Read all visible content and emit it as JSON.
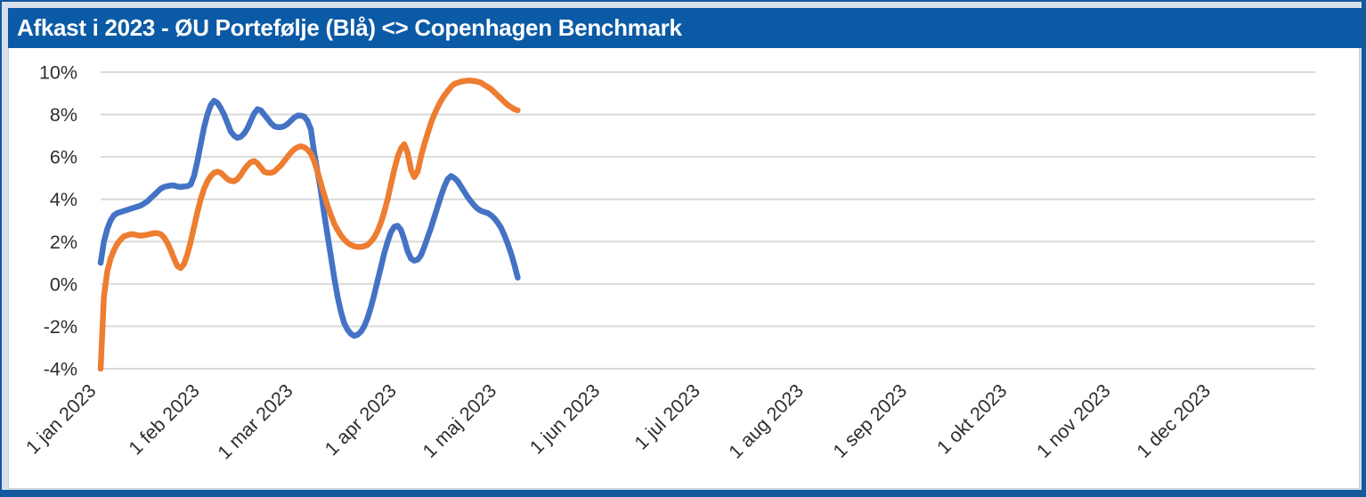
{
  "window": {
    "title": "Afkast i 2023 - ØU Portefølje (Blå) <> Copenhagen Benchmark",
    "colors": {
      "titlebar_bg": "#0b5aa5",
      "titlebar_text": "#ffffff",
      "frame_border": "#14589d",
      "frame_light": "#d6e1ec",
      "gridline": "#d9d9d9",
      "axis_text": "#2e2e2e",
      "plot_bg": "#ffffff"
    }
  },
  "chart_data": {
    "type": "line",
    "title": "Afkast i 2023 - ØU Portefølje (Blå) <> Copenhagen Benchmark",
    "grid": true,
    "legend_position": "none",
    "y_axis": {
      "unit": "%",
      "ylim": [
        -4,
        10
      ],
      "tick_values": [
        10,
        8,
        6,
        4,
        2,
        0,
        -2,
        -4
      ],
      "tick_labels": [
        "10%",
        "8%",
        "6%",
        "4%",
        "2%",
        "0%",
        "-2%",
        "-4%"
      ]
    },
    "x_axis": {
      "unit": "days since 1 jan 2023",
      "xlim_days": [
        0,
        364
      ],
      "tick_day_offsets": [
        0,
        31,
        59,
        90,
        120,
        151,
        181,
        212,
        243,
        273,
        304,
        334
      ],
      "tick_labels": [
        "1 jan 2023",
        "1 feb 2023",
        "1 mar 2023",
        "1 apr 2023",
        "1 maj 2023",
        "1 jun 2023",
        "1 jul 2023",
        "1 aug 2023",
        "1 sep 2023",
        "1 okt 2023",
        "1 nov 2023",
        "1 dec 2023"
      ]
    },
    "series": [
      {
        "name": "ØU Portefølje (Blå)",
        "color": "#4472C4",
        "stroke_width": 6.5,
        "points_day_value": [
          [
            0,
            1.0
          ],
          [
            1,
            2.0
          ],
          [
            2,
            2.6
          ],
          [
            3,
            3.0
          ],
          [
            4,
            3.25
          ],
          [
            5,
            3.35
          ],
          [
            6,
            3.4
          ],
          [
            7,
            3.45
          ],
          [
            8,
            3.5
          ],
          [
            9,
            3.55
          ],
          [
            10,
            3.6
          ],
          [
            11,
            3.65
          ],
          [
            12,
            3.7
          ],
          [
            13,
            3.8
          ],
          [
            14,
            3.9
          ],
          [
            15,
            4.05
          ],
          [
            16,
            4.2
          ],
          [
            17,
            4.35
          ],
          [
            18,
            4.5
          ],
          [
            19,
            4.58
          ],
          [
            20,
            4.62
          ],
          [
            21,
            4.65
          ],
          [
            22,
            4.65
          ],
          [
            23,
            4.6
          ],
          [
            24,
            4.58
          ],
          [
            25,
            4.6
          ],
          [
            26,
            4.62
          ],
          [
            27,
            4.7
          ],
          [
            28,
            5.1
          ],
          [
            29,
            5.8
          ],
          [
            30,
            6.6
          ],
          [
            31,
            7.4
          ],
          [
            32,
            8.0
          ],
          [
            33,
            8.45
          ],
          [
            34,
            8.65
          ],
          [
            35,
            8.55
          ],
          [
            36,
            8.3
          ],
          [
            37,
            8.0
          ],
          [
            38,
            7.6
          ],
          [
            39,
            7.2
          ],
          [
            40,
            7.0
          ],
          [
            41,
            6.9
          ],
          [
            42,
            6.95
          ],
          [
            43,
            7.1
          ],
          [
            44,
            7.35
          ],
          [
            45,
            7.7
          ],
          [
            46,
            8.05
          ],
          [
            47,
            8.25
          ],
          [
            48,
            8.2
          ],
          [
            49,
            8.0
          ],
          [
            50,
            7.8
          ],
          [
            51,
            7.6
          ],
          [
            52,
            7.45
          ],
          [
            53,
            7.4
          ],
          [
            54,
            7.4
          ],
          [
            55,
            7.45
          ],
          [
            56,
            7.55
          ],
          [
            57,
            7.7
          ],
          [
            58,
            7.85
          ],
          [
            59,
            7.95
          ],
          [
            60,
            7.95
          ],
          [
            61,
            7.9
          ],
          [
            62,
            7.7
          ],
          [
            63,
            7.3
          ],
          [
            64,
            6.2
          ],
          [
            65,
            5.3
          ],
          [
            66,
            4.4
          ],
          [
            67,
            3.3
          ],
          [
            68,
            2.3
          ],
          [
            69,
            1.3
          ],
          [
            70,
            0.3
          ],
          [
            71,
            -0.6
          ],
          [
            72,
            -1.3
          ],
          [
            73,
            -1.85
          ],
          [
            74,
            -2.15
          ],
          [
            75,
            -2.35
          ],
          [
            76,
            -2.45
          ],
          [
            77,
            -2.4
          ],
          [
            78,
            -2.25
          ],
          [
            79,
            -2.0
          ],
          [
            80,
            -1.6
          ],
          [
            81,
            -1.1
          ],
          [
            82,
            -0.5
          ],
          [
            83,
            0.15
          ],
          [
            84,
            0.8
          ],
          [
            85,
            1.45
          ],
          [
            86,
            2.0
          ],
          [
            87,
            2.45
          ],
          [
            88,
            2.7
          ],
          [
            89,
            2.75
          ],
          [
            90,
            2.55
          ],
          [
            91,
            2.1
          ],
          [
            92,
            1.55
          ],
          [
            93,
            1.2
          ],
          [
            94,
            1.1
          ],
          [
            95,
            1.15
          ],
          [
            96,
            1.35
          ],
          [
            97,
            1.75
          ],
          [
            98,
            2.2
          ],
          [
            99,
            2.65
          ],
          [
            100,
            3.15
          ],
          [
            101,
            3.65
          ],
          [
            102,
            4.15
          ],
          [
            103,
            4.6
          ],
          [
            104,
            4.95
          ],
          [
            105,
            5.1
          ],
          [
            106,
            5.0
          ],
          [
            107,
            4.85
          ],
          [
            108,
            4.6
          ],
          [
            109,
            4.35
          ],
          [
            110,
            4.1
          ],
          [
            111,
            3.9
          ],
          [
            112,
            3.7
          ],
          [
            113,
            3.55
          ],
          [
            114,
            3.45
          ],
          [
            115,
            3.4
          ],
          [
            116,
            3.35
          ],
          [
            117,
            3.25
          ],
          [
            118,
            3.1
          ],
          [
            119,
            2.9
          ],
          [
            120,
            2.65
          ],
          [
            121,
            2.3
          ],
          [
            122,
            1.9
          ],
          [
            123,
            1.45
          ],
          [
            124,
            0.9
          ],
          [
            125,
            0.3
          ]
        ]
      },
      {
        "name": "Copenhagen Benchmark",
        "color": "#ED7D31",
        "stroke_width": 6.5,
        "points_day_value": [
          [
            0,
            -4.0
          ],
          [
            1,
            -0.6
          ],
          [
            2,
            0.6
          ],
          [
            3,
            1.2
          ],
          [
            4,
            1.6
          ],
          [
            5,
            1.9
          ],
          [
            6,
            2.1
          ],
          [
            7,
            2.25
          ],
          [
            8,
            2.3
          ],
          [
            9,
            2.35
          ],
          [
            10,
            2.35
          ],
          [
            11,
            2.3
          ],
          [
            12,
            2.28
          ],
          [
            13,
            2.3
          ],
          [
            14,
            2.33
          ],
          [
            15,
            2.36
          ],
          [
            16,
            2.4
          ],
          [
            17,
            2.4
          ],
          [
            18,
            2.35
          ],
          [
            19,
            2.2
          ],
          [
            20,
            1.95
          ],
          [
            21,
            1.6
          ],
          [
            22,
            1.2
          ],
          [
            23,
            0.85
          ],
          [
            24,
            0.75
          ],
          [
            25,
            0.95
          ],
          [
            26,
            1.4
          ],
          [
            27,
            2.0
          ],
          [
            28,
            2.7
          ],
          [
            29,
            3.4
          ],
          [
            30,
            4.0
          ],
          [
            31,
            4.5
          ],
          [
            32,
            4.85
          ],
          [
            33,
            5.1
          ],
          [
            34,
            5.25
          ],
          [
            35,
            5.3
          ],
          [
            36,
            5.25
          ],
          [
            37,
            5.1
          ],
          [
            38,
            4.95
          ],
          [
            39,
            4.87
          ],
          [
            40,
            4.85
          ],
          [
            41,
            4.95
          ],
          [
            42,
            5.15
          ],
          [
            43,
            5.4
          ],
          [
            44,
            5.6
          ],
          [
            45,
            5.75
          ],
          [
            46,
            5.8
          ],
          [
            47,
            5.7
          ],
          [
            48,
            5.5
          ],
          [
            49,
            5.3
          ],
          [
            50,
            5.25
          ],
          [
            51,
            5.25
          ],
          [
            52,
            5.3
          ],
          [
            53,
            5.45
          ],
          [
            54,
            5.6
          ],
          [
            55,
            5.8
          ],
          [
            56,
            6.0
          ],
          [
            57,
            6.2
          ],
          [
            58,
            6.35
          ],
          [
            59,
            6.45
          ],
          [
            60,
            6.5
          ],
          [
            61,
            6.45
          ],
          [
            62,
            6.35
          ],
          [
            63,
            6.15
          ],
          [
            64,
            5.8
          ],
          [
            65,
            5.3
          ],
          [
            66,
            4.75
          ],
          [
            67,
            4.2
          ],
          [
            68,
            3.7
          ],
          [
            69,
            3.25
          ],
          [
            70,
            2.85
          ],
          [
            71,
            2.55
          ],
          [
            72,
            2.3
          ],
          [
            73,
            2.1
          ],
          [
            74,
            1.95
          ],
          [
            75,
            1.85
          ],
          [
            76,
            1.78
          ],
          [
            77,
            1.75
          ],
          [
            78,
            1.75
          ],
          [
            79,
            1.78
          ],
          [
            80,
            1.85
          ],
          [
            81,
            2.0
          ],
          [
            82,
            2.2
          ],
          [
            83,
            2.5
          ],
          [
            84,
            2.9
          ],
          [
            85,
            3.4
          ],
          [
            86,
            4.0
          ],
          [
            87,
            4.7
          ],
          [
            88,
            5.4
          ],
          [
            89,
            6.0
          ],
          [
            90,
            6.4
          ],
          [
            91,
            6.6
          ],
          [
            92,
            6.2
          ],
          [
            93,
            5.4
          ],
          [
            94,
            5.05
          ],
          [
            95,
            5.3
          ],
          [
            96,
            6.0
          ],
          [
            97,
            6.6
          ],
          [
            98,
            7.1
          ],
          [
            99,
            7.6
          ],
          [
            100,
            8.0
          ],
          [
            101,
            8.35
          ],
          [
            102,
            8.65
          ],
          [
            103,
            8.9
          ],
          [
            104,
            9.1
          ],
          [
            105,
            9.3
          ],
          [
            106,
            9.45
          ],
          [
            107,
            9.5
          ],
          [
            108,
            9.55
          ],
          [
            109,
            9.58
          ],
          [
            110,
            9.6
          ],
          [
            111,
            9.6
          ],
          [
            112,
            9.58
          ],
          [
            113,
            9.55
          ],
          [
            114,
            9.5
          ],
          [
            115,
            9.4
          ],
          [
            116,
            9.3
          ],
          [
            117,
            9.2
          ],
          [
            118,
            9.05
          ],
          [
            119,
            8.9
          ],
          [
            120,
            8.75
          ],
          [
            121,
            8.6
          ],
          [
            122,
            8.45
          ],
          [
            123,
            8.35
          ],
          [
            124,
            8.25
          ],
          [
            125,
            8.2
          ]
        ]
      }
    ]
  }
}
